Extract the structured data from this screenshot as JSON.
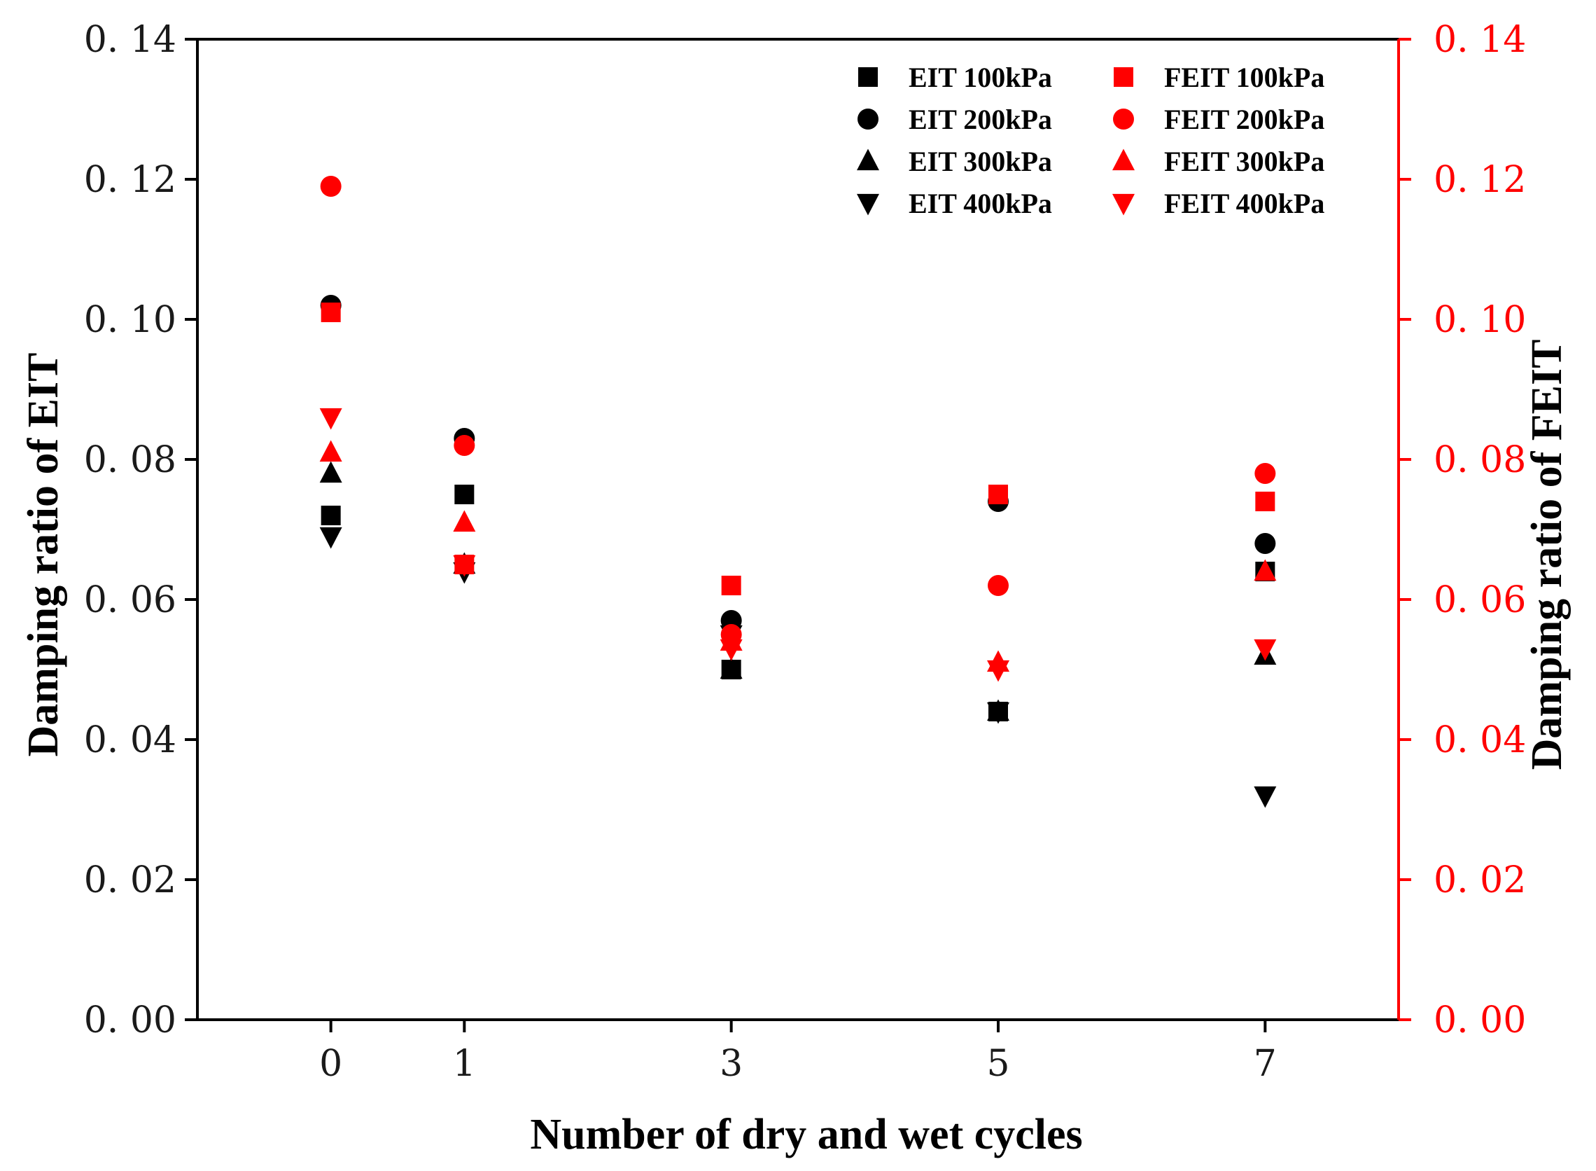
{
  "chart_data": {
    "type": "scatter",
    "title": "",
    "xlabel": "Number of dry and wet cycles",
    "ylabel_left": "Damping ratio of  EIT",
    "ylabel_right": "Damping ratio of  FEIT",
    "x_ticks": [
      "0",
      "1",
      "3",
      "5",
      "7"
    ],
    "y_ticks": [
      "0. 00",
      "0. 02",
      "0. 04",
      "0. 06",
      "0. 08",
      "0. 10",
      "0. 12",
      "0. 14"
    ],
    "ylim": [
      0,
      0.14
    ],
    "x_range": [
      -1,
      8
    ],
    "grid": false,
    "legend_position": "top-right",
    "colors": {
      "eit": "#000000",
      "feit": "#ff0000",
      "left_axis": "#000000",
      "right_axis": "#ff0000"
    },
    "series": [
      {
        "name": "EIT 100kPa",
        "group": "EIT",
        "marker": "square",
        "x": [
          0,
          1,
          3,
          5,
          7
        ],
        "values": [
          0.072,
          0.075,
          0.05,
          0.044,
          0.064
        ]
      },
      {
        "name": "EIT 200kPa",
        "group": "EIT",
        "marker": "circle",
        "x": [
          0,
          1,
          3,
          5,
          7
        ],
        "values": [
          0.102,
          0.083,
          0.057,
          0.074,
          0.068
        ]
      },
      {
        "name": "EIT 300kPa",
        "group": "EIT",
        "marker": "triangle-up",
        "x": [
          0,
          1,
          3,
          5,
          7
        ],
        "values": [
          0.078,
          0.065,
          0.05,
          0.044,
          0.052
        ]
      },
      {
        "name": "EIT 400kPa",
        "group": "EIT",
        "marker": "triangle-down",
        "x": [
          0,
          1,
          3,
          5,
          7
        ],
        "values": [
          0.069,
          0.064,
          0.055,
          0.044,
          0.032
        ]
      },
      {
        "name": "FEIT 100kPa",
        "group": "FEIT",
        "marker": "square",
        "x": [
          0,
          1,
          3,
          5,
          7
        ],
        "values": [
          0.101,
          0.065,
          0.062,
          0.075,
          0.074
        ]
      },
      {
        "name": "FEIT 200kPa",
        "group": "FEIT",
        "marker": "circle",
        "x": [
          0,
          1,
          3,
          5,
          7
        ],
        "values": [
          0.119,
          0.082,
          0.055,
          0.062,
          0.078
        ]
      },
      {
        "name": "FEIT 300kPa",
        "group": "FEIT",
        "marker": "triangle-up",
        "x": [
          0,
          1,
          3,
          5,
          7
        ],
        "values": [
          0.081,
          0.071,
          0.054,
          0.051,
          0.064
        ]
      },
      {
        "name": "FEIT 400kPa",
        "group": "FEIT",
        "marker": "triangle-down",
        "x": [
          0,
          1,
          3,
          5,
          7
        ],
        "values": [
          0.086,
          0.065,
          0.053,
          0.05,
          0.053
        ]
      }
    ]
  }
}
